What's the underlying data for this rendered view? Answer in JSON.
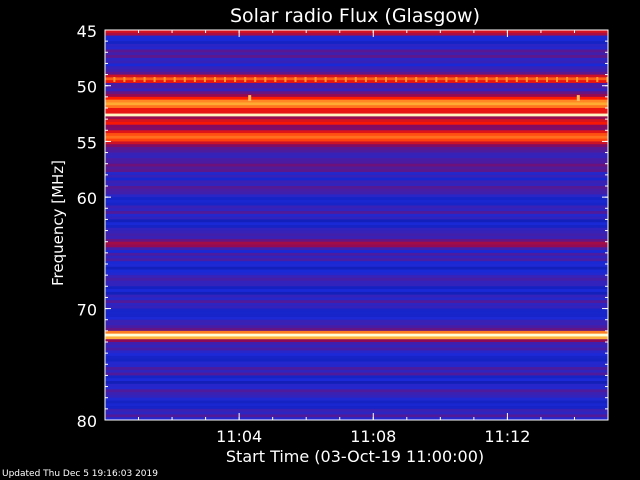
{
  "chart_data": {
    "type": "heatmap",
    "title": "Solar radio Flux (Glasgow)",
    "xlabel": "Start Time (03-Oct-19 11:00:00)",
    "ylabel": "Frequency [MHz]",
    "x_unit": "minutes after 11:00",
    "xlim": [
      0,
      15
    ],
    "ylim": [
      45,
      80
    ],
    "y_inverted": true,
    "x_ticks": [
      {
        "value": 4,
        "label": "11:04"
      },
      {
        "value": 8,
        "label": "11:08"
      },
      {
        "value": 12,
        "label": "11:12"
      }
    ],
    "y_ticks": [
      {
        "value": 45,
        "label": "45"
      },
      {
        "value": 50,
        "label": "50"
      },
      {
        "value": 55,
        "label": "55"
      },
      {
        "value": 60,
        "label": "60"
      },
      {
        "value": 70,
        "label": "70"
      },
      {
        "value": 80,
        "label": "80"
      }
    ],
    "colormap": [
      "#00005a",
      "#1a2ad8",
      "#8a0a5a",
      "#ff1800",
      "#ffaa30",
      "#ffffd8"
    ],
    "bands": [
      {
        "freq": 45.2,
        "width": 0.4,
        "intensity": 0.55
      },
      {
        "freq": 49.4,
        "width": 0.5,
        "intensity": 0.7
      },
      {
        "freq": 51.6,
        "width": 0.9,
        "intensity": 0.8
      },
      {
        "freq": 52.6,
        "width": 0.3,
        "intensity": 0.98
      },
      {
        "freq": 53.3,
        "width": 0.5,
        "intensity": 0.6
      },
      {
        "freq": 54.6,
        "width": 0.9,
        "intensity": 0.72
      },
      {
        "freq": 64.2,
        "width": 0.6,
        "intensity": 0.45
      },
      {
        "freq": 72.4,
        "width": 0.5,
        "intensity": 1.0
      },
      {
        "freq": 75.9,
        "width": 0.2,
        "intensity": 0.3
      },
      {
        "freq": 77.4,
        "width": 0.2,
        "intensity": 0.3
      }
    ],
    "bursts": [
      {
        "time": 4.3,
        "freq": 51.2,
        "intensity": 0.85
      },
      {
        "time": 14.1,
        "freq": 51.2,
        "intensity": 0.85
      }
    ]
  },
  "footer": {
    "updated": "Updated Thu Dec  5 19:16:03 2019"
  },
  "colors": {
    "background": "#000000",
    "axis": "#ffffff"
  }
}
